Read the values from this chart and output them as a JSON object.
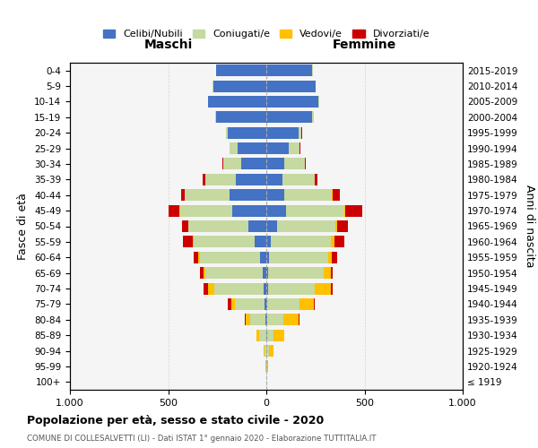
{
  "age_groups": [
    "100+",
    "95-99",
    "90-94",
    "85-89",
    "80-84",
    "75-79",
    "70-74",
    "65-69",
    "60-64",
    "55-59",
    "50-54",
    "45-49",
    "40-44",
    "35-39",
    "30-34",
    "25-29",
    "20-24",
    "15-19",
    "10-14",
    "5-9",
    "0-4"
  ],
  "birth_years": [
    "≤ 1919",
    "1920-1924",
    "1925-1929",
    "1930-1934",
    "1935-1939",
    "1940-1944",
    "1945-1949",
    "1950-1954",
    "1955-1959",
    "1960-1964",
    "1965-1969",
    "1970-1974",
    "1975-1979",
    "1980-1984",
    "1985-1989",
    "1990-1994",
    "1995-1999",
    "2000-2004",
    "2005-2009",
    "2010-2014",
    "2015-2019"
  ],
  "male": {
    "celibe": [
      0,
      0,
      0,
      2,
      5,
      10,
      15,
      20,
      30,
      60,
      90,
      175,
      185,
      155,
      130,
      145,
      195,
      255,
      295,
      270,
      255
    ],
    "coniugato": [
      0,
      2,
      8,
      35,
      75,
      150,
      250,
      290,
      310,
      310,
      305,
      265,
      230,
      155,
      90,
      40,
      10,
      5,
      3,
      2,
      2
    ],
    "vedovo": [
      0,
      1,
      5,
      15,
      25,
      20,
      30,
      8,
      5,
      4,
      3,
      2,
      1,
      1,
      0,
      0,
      0,
      0,
      0,
      0,
      0
    ],
    "divorziato": [
      0,
      0,
      0,
      0,
      5,
      15,
      25,
      20,
      25,
      50,
      30,
      55,
      20,
      15,
      5,
      2,
      0,
      0,
      0,
      0,
      0
    ]
  },
  "female": {
    "nubile": [
      0,
      0,
      2,
      5,
      5,
      5,
      10,
      10,
      15,
      25,
      55,
      100,
      90,
      80,
      90,
      115,
      165,
      235,
      265,
      250,
      235
    ],
    "coniugata": [
      1,
      3,
      10,
      30,
      80,
      165,
      235,
      280,
      300,
      305,
      295,
      295,
      245,
      165,
      105,
      55,
      15,
      5,
      3,
      2,
      2
    ],
    "vedova": [
      1,
      5,
      25,
      55,
      80,
      70,
      85,
      40,
      20,
      15,
      10,
      5,
      3,
      2,
      1,
      0,
      0,
      0,
      0,
      0,
      0
    ],
    "divorziata": [
      0,
      0,
      0,
      1,
      5,
      5,
      10,
      10,
      25,
      50,
      55,
      90,
      35,
      15,
      5,
      2,
      1,
      0,
      0,
      0,
      0
    ]
  },
  "colors": {
    "celibe": "#4472c4",
    "coniugato": "#c5d9a0",
    "vedovo": "#ffc000",
    "divorziato": "#cc0000"
  },
  "title": "Popolazione per età, sesso e stato civile - 2020",
  "subtitle": "COMUNE DI COLLESALVETTI (LI) - Dati ISTAT 1° gennaio 2020 - Elaborazione TUTTITALIA.IT",
  "xlabel_left": "Maschi",
  "xlabel_right": "Femmine",
  "ylabel_left": "Fasce di età",
  "ylabel_right": "Anni di nascita",
  "xlim": 1000,
  "legend_labels": [
    "Celibi/Nubili",
    "Coniugati/e",
    "Vedovi/e",
    "Divorziati/e"
  ],
  "bg_color": "#ffffff",
  "ax_bg": "#f5f5f5",
  "grid_color": "#cccccc"
}
